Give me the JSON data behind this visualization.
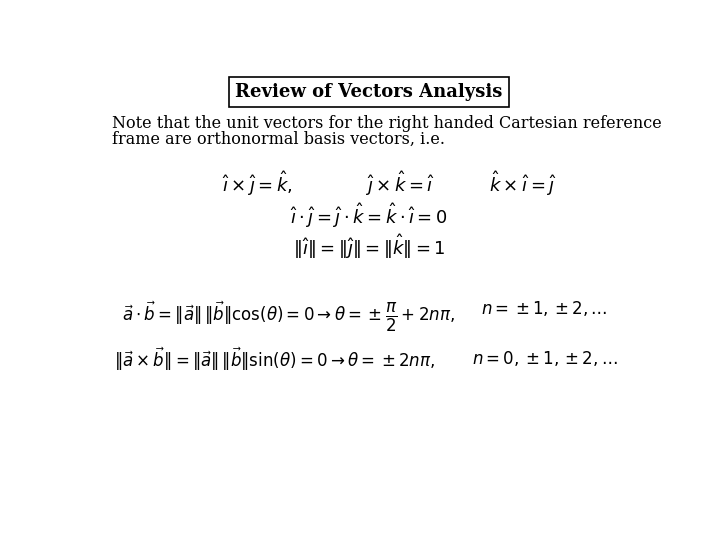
{
  "title": "Review of Vectors Analysis",
  "background_color": "#ffffff",
  "text_color": "#000000",
  "body_line1": "Note that the unit vectors for the right handed Cartesian reference",
  "body_line2": "frame are orthonormal basis vectors, i.e.",
  "title_fontsize": 13,
  "body_fontsize": 11.5,
  "eq_fontsize": 13,
  "eq_small_fontsize": 12
}
